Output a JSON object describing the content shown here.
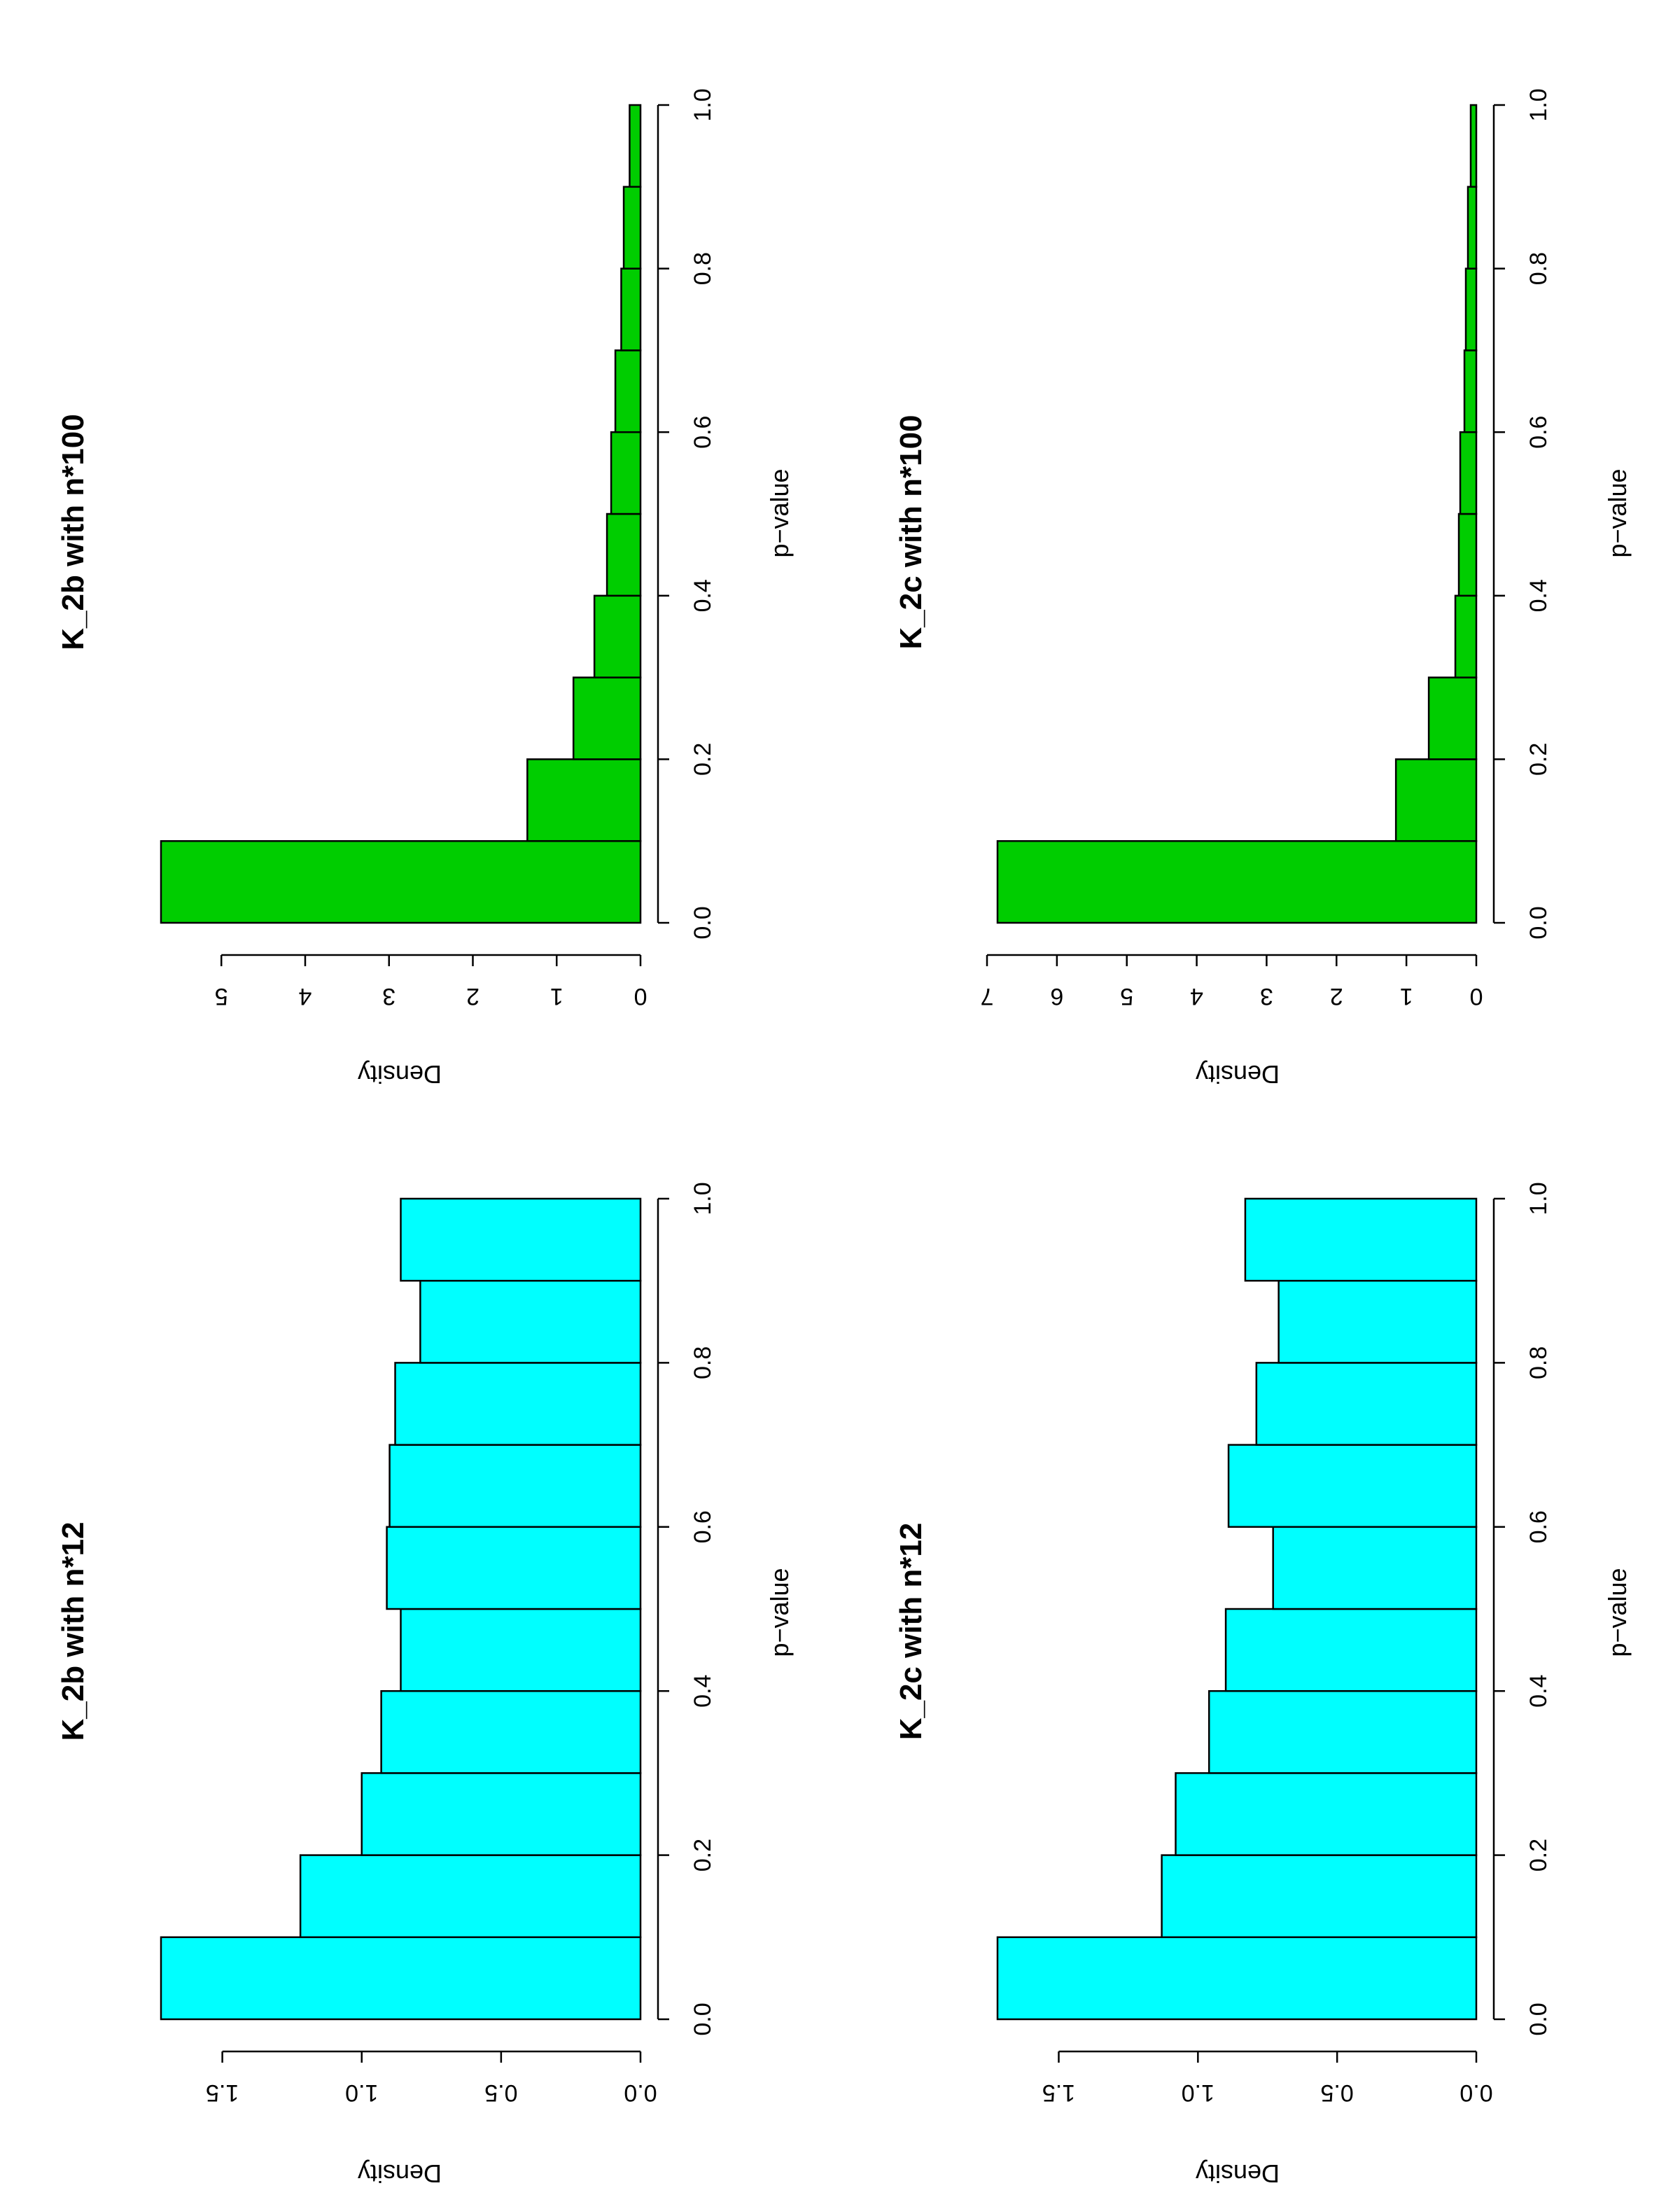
{
  "chart_data": [
    {
      "type": "bar",
      "title": "K_2b with n*12",
      "xlabel": "p−value",
      "ylabel": "Density",
      "bin_edges": [
        0.0,
        0.1,
        0.2,
        0.3,
        0.4,
        0.5,
        0.6,
        0.7,
        0.8,
        0.9,
        1.0
      ],
      "values": [
        1.72,
        1.22,
        1.0,
        0.93,
        0.86,
        0.91,
        0.9,
        0.88,
        0.79,
        0.86
      ],
      "xlim": [
        0,
        1
      ],
      "ylim": [
        0,
        1.72
      ],
      "xticks": [
        "0.0",
        "0.2",
        "0.4",
        "0.6",
        "0.8",
        "1.0"
      ],
      "yticks": [
        "0.0",
        "0.5",
        "1.0",
        "1.5"
      ],
      "bar_color": "#00FFFF",
      "grid": false
    },
    {
      "type": "bar",
      "title": "K_2b with n*100",
      "xlabel": "p−value",
      "ylabel": "Density",
      "bin_edges": [
        0.0,
        0.1,
        0.2,
        0.3,
        0.4,
        0.5,
        0.6,
        0.7,
        0.8,
        0.9,
        1.0
      ],
      "values": [
        5.72,
        1.35,
        0.8,
        0.55,
        0.4,
        0.35,
        0.3,
        0.23,
        0.2,
        0.13
      ],
      "xlim": [
        0,
        1
      ],
      "ylim": [
        0,
        5.72
      ],
      "xticks": [
        "0.0",
        "0.2",
        "0.4",
        "0.6",
        "0.8",
        "1.0"
      ],
      "yticks": [
        "0",
        "1",
        "2",
        "3",
        "4",
        "5"
      ],
      "bar_color": "#00CD00",
      "grid": false
    },
    {
      "type": "bar",
      "title": "K_2c with n*12",
      "xlabel": "p−value",
      "ylabel": "Density",
      "bin_edges": [
        0.0,
        0.1,
        0.2,
        0.3,
        0.4,
        0.5,
        0.6,
        0.7,
        0.8,
        0.9,
        1.0
      ],
      "values": [
        1.72,
        1.13,
        1.08,
        0.96,
        0.9,
        0.73,
        0.89,
        0.79,
        0.71,
        0.83
      ],
      "xlim": [
        0,
        1
      ],
      "ylim": [
        0,
        1.72
      ],
      "xticks": [
        "0.0",
        "0.2",
        "0.4",
        "0.6",
        "0.8",
        "1.0"
      ],
      "yticks": [
        "0.0",
        "0.5",
        "1.0",
        "1.5"
      ],
      "bar_color": "#00FFFF",
      "grid": false
    },
    {
      "type": "bar",
      "title": "K_2c with n*100",
      "xlabel": "p−value",
      "ylabel": "Density",
      "bin_edges": [
        0.0,
        0.1,
        0.2,
        0.3,
        0.4,
        0.5,
        0.6,
        0.7,
        0.8,
        0.9,
        1.0
      ],
      "values": [
        6.85,
        1.15,
        0.68,
        0.3,
        0.25,
        0.23,
        0.17,
        0.15,
        0.12,
        0.08
      ],
      "xlim": [
        0,
        1
      ],
      "ylim": [
        0,
        6.85
      ],
      "xticks": [
        "0.0",
        "0.2",
        "0.4",
        "0.6",
        "0.8",
        "1.0"
      ],
      "yticks": [
        "0",
        "1",
        "2",
        "3",
        "4",
        "5",
        "6",
        "7"
      ],
      "bar_color": "#00CD00",
      "grid": false
    }
  ]
}
